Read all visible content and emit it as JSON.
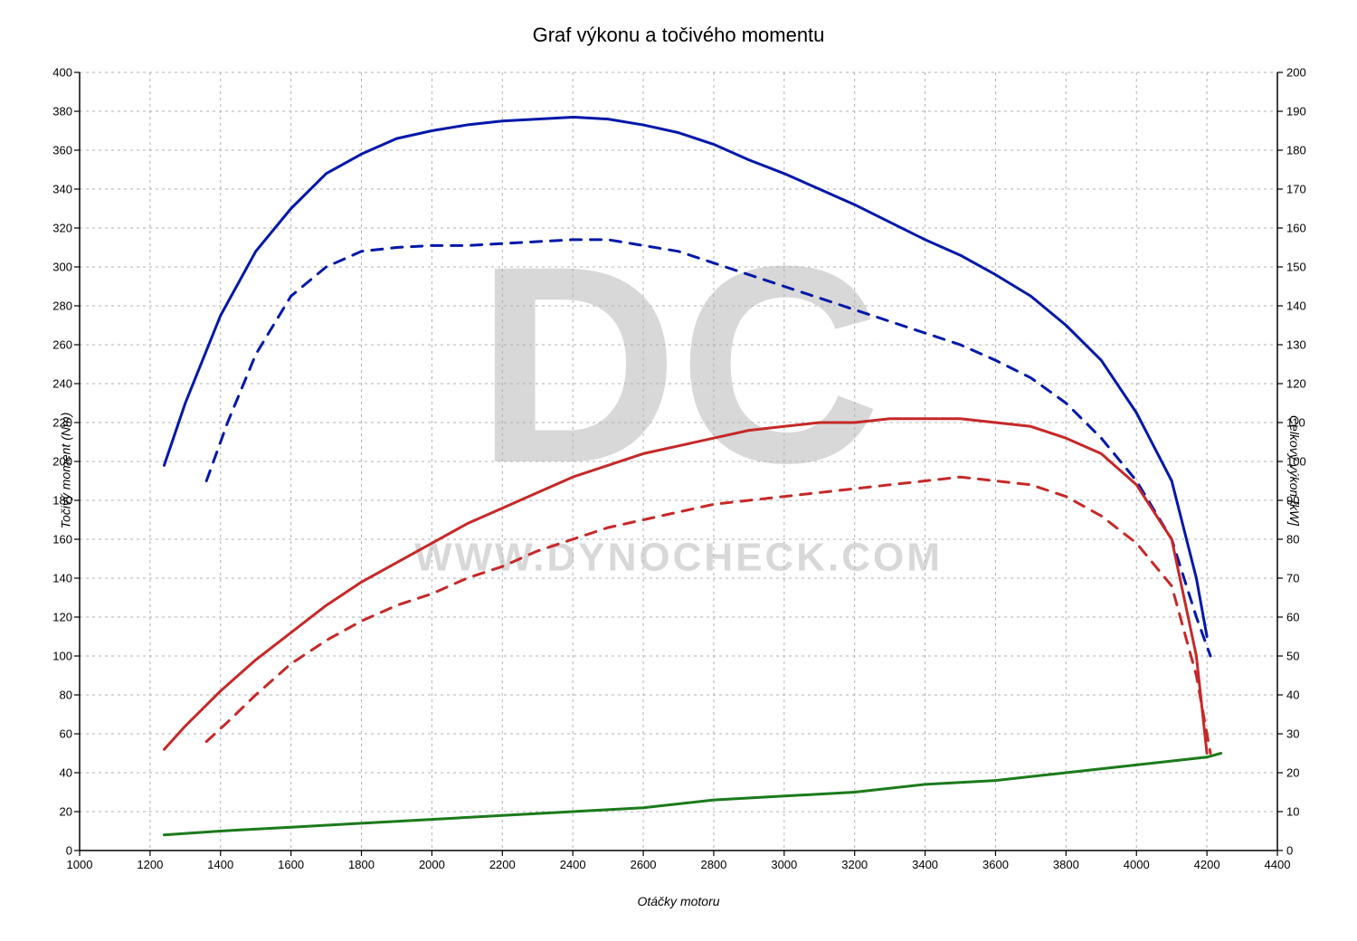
{
  "chart": {
    "type": "line",
    "title": "Graf výkonu a točivého momentu",
    "title_fontsize": 22,
    "background_color": "#ffffff",
    "grid_color": "#b0b0b0",
    "axis_color": "#000000",
    "grid_dash": [
      3,
      4
    ],
    "x_axis": {
      "label": "Otáčky motoru",
      "label_fontsize": 14,
      "min": 1000,
      "max": 4400,
      "tick_step": 200,
      "ticks": [
        1000,
        1200,
        1400,
        1600,
        1800,
        2000,
        2200,
        2400,
        2600,
        2800,
        3000,
        3200,
        3400,
        3600,
        3800,
        4000,
        4200,
        4400
      ]
    },
    "y_left": {
      "label": "Točivý moment (Nm)",
      "label_fontsize": 14,
      "min": 0,
      "max": 400,
      "tick_step": 20,
      "ticks": [
        0,
        20,
        40,
        60,
        80,
        100,
        120,
        140,
        160,
        180,
        200,
        220,
        240,
        260,
        280,
        300,
        320,
        340,
        360,
        380,
        400
      ]
    },
    "y_right": {
      "label": "Celkový výkon [kW]",
      "label_fontsize": 14,
      "min": 0,
      "max": 200,
      "tick_step": 10,
      "ticks": [
        0,
        10,
        20,
        30,
        40,
        50,
        60,
        70,
        80,
        90,
        100,
        110,
        120,
        130,
        140,
        150,
        160,
        170,
        180,
        190,
        200
      ]
    },
    "watermark": {
      "text_logo": "DC",
      "text_url": "WWW.DYNOCHECK.COM",
      "color": "#d8d8d8"
    },
    "series": [
      {
        "name": "torque_tuned",
        "axis": "left",
        "color": "#0018a8",
        "width": 3,
        "dash": null,
        "points": [
          [
            1240,
            198
          ],
          [
            1300,
            230
          ],
          [
            1400,
            275
          ],
          [
            1500,
            308
          ],
          [
            1600,
            330
          ],
          [
            1700,
            348
          ],
          [
            1800,
            358
          ],
          [
            1900,
            366
          ],
          [
            2000,
            370
          ],
          [
            2100,
            373
          ],
          [
            2200,
            375
          ],
          [
            2300,
            376
          ],
          [
            2400,
            377
          ],
          [
            2500,
            376
          ],
          [
            2600,
            373
          ],
          [
            2700,
            369
          ],
          [
            2800,
            363
          ],
          [
            2900,
            355
          ],
          [
            3000,
            348
          ],
          [
            3100,
            340
          ],
          [
            3200,
            332
          ],
          [
            3300,
            323
          ],
          [
            3400,
            314
          ],
          [
            3500,
            306
          ],
          [
            3600,
            296
          ],
          [
            3700,
            285
          ],
          [
            3800,
            270
          ],
          [
            3900,
            252
          ],
          [
            4000,
            225
          ],
          [
            4100,
            190
          ],
          [
            4170,
            140
          ],
          [
            4200,
            110
          ]
        ]
      },
      {
        "name": "torque_stock",
        "axis": "left",
        "color": "#0018a8",
        "width": 3,
        "dash": [
          12,
          10
        ],
        "points": [
          [
            1360,
            190
          ],
          [
            1420,
            220
          ],
          [
            1500,
            255
          ],
          [
            1600,
            285
          ],
          [
            1700,
            300
          ],
          [
            1800,
            308
          ],
          [
            1900,
            310
          ],
          [
            2000,
            311
          ],
          [
            2100,
            311
          ],
          [
            2200,
            312
          ],
          [
            2300,
            313
          ],
          [
            2400,
            314
          ],
          [
            2500,
            314
          ],
          [
            2600,
            311
          ],
          [
            2700,
            308
          ],
          [
            2800,
            302
          ],
          [
            2900,
            296
          ],
          [
            3000,
            290
          ],
          [
            3100,
            284
          ],
          [
            3200,
            278
          ],
          [
            3300,
            272
          ],
          [
            3400,
            266
          ],
          [
            3500,
            260
          ],
          [
            3600,
            252
          ],
          [
            3700,
            243
          ],
          [
            3800,
            230
          ],
          [
            3900,
            212
          ],
          [
            4000,
            190
          ],
          [
            4100,
            160
          ],
          [
            4170,
            120
          ],
          [
            4210,
            100
          ]
        ]
      },
      {
        "name": "power_tuned",
        "axis": "right",
        "color": "#c62828",
        "width": 3,
        "dash": null,
        "points": [
          [
            1240,
            26
          ],
          [
            1300,
            32
          ],
          [
            1400,
            41
          ],
          [
            1500,
            49
          ],
          [
            1600,
            56
          ],
          [
            1700,
            63
          ],
          [
            1800,
            69
          ],
          [
            1900,
            74
          ],
          [
            2000,
            79
          ],
          [
            2100,
            84
          ],
          [
            2200,
            88
          ],
          [
            2300,
            92
          ],
          [
            2400,
            96
          ],
          [
            2500,
            99
          ],
          [
            2600,
            102
          ],
          [
            2700,
            104
          ],
          [
            2800,
            106
          ],
          [
            2900,
            108
          ],
          [
            3000,
            109
          ],
          [
            3100,
            110
          ],
          [
            3200,
            110
          ],
          [
            3300,
            111
          ],
          [
            3400,
            111
          ],
          [
            3500,
            111
          ],
          [
            3600,
            110
          ],
          [
            3700,
            109
          ],
          [
            3800,
            106
          ],
          [
            3900,
            102
          ],
          [
            4000,
            94
          ],
          [
            4100,
            80
          ],
          [
            4170,
            50
          ],
          [
            4200,
            25
          ]
        ]
      },
      {
        "name": "power_stock",
        "axis": "right",
        "color": "#c62828",
        "width": 3,
        "dash": [
          12,
          10
        ],
        "points": [
          [
            1360,
            28
          ],
          [
            1420,
            33
          ],
          [
            1500,
            40
          ],
          [
            1600,
            48
          ],
          [
            1700,
            54
          ],
          [
            1800,
            59
          ],
          [
            1900,
            63
          ],
          [
            2000,
            66
          ],
          [
            2100,
            70
          ],
          [
            2200,
            73
          ],
          [
            2300,
            77
          ],
          [
            2400,
            80
          ],
          [
            2500,
            83
          ],
          [
            2600,
            85
          ],
          [
            2700,
            87
          ],
          [
            2800,
            89
          ],
          [
            2900,
            90
          ],
          [
            3000,
            91
          ],
          [
            3100,
            92
          ],
          [
            3200,
            93
          ],
          [
            3300,
            94
          ],
          [
            3400,
            95
          ],
          [
            3500,
            96
          ],
          [
            3600,
            95
          ],
          [
            3700,
            94
          ],
          [
            3800,
            91
          ],
          [
            3900,
            86
          ],
          [
            4000,
            79
          ],
          [
            4100,
            68
          ],
          [
            4170,
            45
          ],
          [
            4210,
            25
          ]
        ]
      },
      {
        "name": "loss_power",
        "axis": "right",
        "color": "#1b7a1b",
        "width": 3,
        "dash": null,
        "points": [
          [
            1240,
            4
          ],
          [
            1400,
            5
          ],
          [
            1600,
            6
          ],
          [
            1800,
            7
          ],
          [
            2000,
            8
          ],
          [
            2200,
            9
          ],
          [
            2400,
            10
          ],
          [
            2600,
            11
          ],
          [
            2800,
            13
          ],
          [
            3000,
            14
          ],
          [
            3200,
            15
          ],
          [
            3400,
            17
          ],
          [
            3600,
            18
          ],
          [
            3800,
            20
          ],
          [
            4000,
            22
          ],
          [
            4200,
            24
          ],
          [
            4240,
            25
          ]
        ]
      }
    ]
  }
}
